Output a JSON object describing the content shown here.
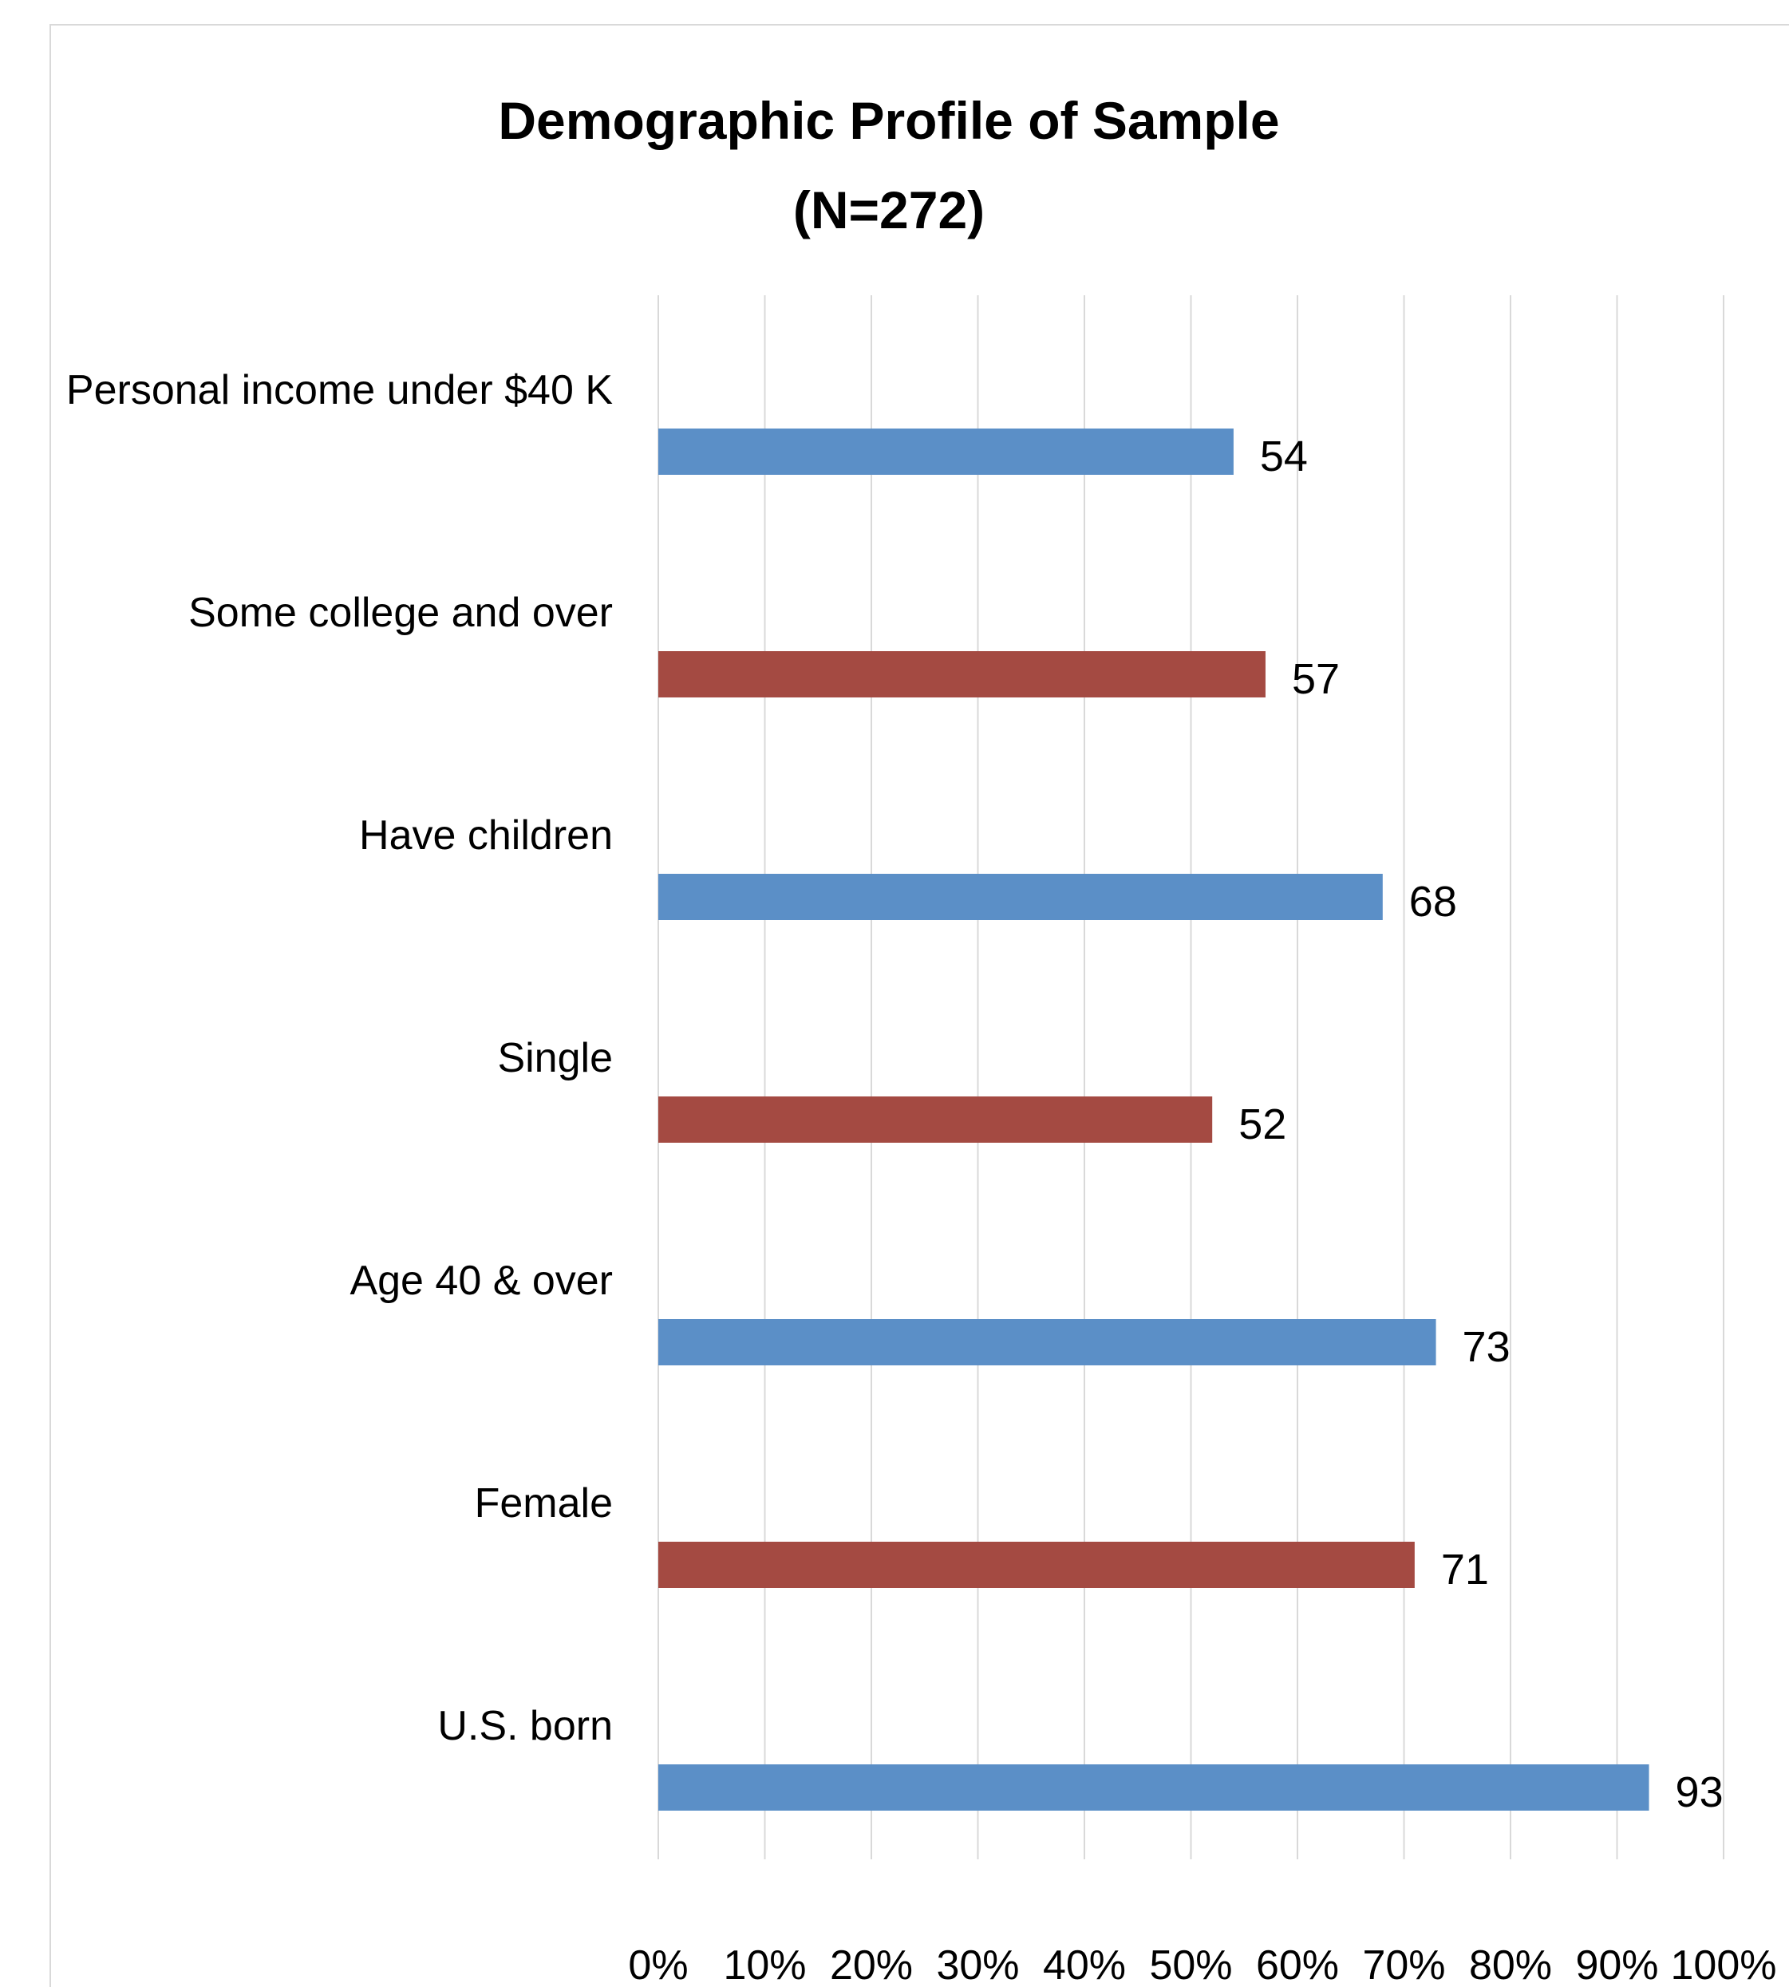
{
  "chart_data": {
    "type": "bar",
    "orientation": "horizontal",
    "title": "Demographic Profile of Sample",
    "subtitle": "(N=272)",
    "xlabel": "",
    "ylabel": "",
    "categories": [
      "Personal income under $40 K",
      "Some college and over",
      "Have children",
      "Single",
      "Age 40 & over",
      "Female",
      "U.S. born"
    ],
    "values": [
      54,
      57,
      68,
      52,
      73,
      71,
      93
    ],
    "value_labels": [
      "54",
      "57",
      "68",
      "52",
      "73",
      "71",
      "93"
    ],
    "bar_colors": [
      "#5B8FC7",
      "#A44A42",
      "#5B8FC7",
      "#A44A42",
      "#5B8FC7",
      "#A44A42",
      "#5B8FC7"
    ],
    "xlim": [
      0,
      100
    ],
    "x_ticks": [
      0,
      10,
      20,
      30,
      40,
      50,
      60,
      70,
      80,
      90,
      100
    ],
    "x_tick_labels": [
      "0%",
      "10%",
      "20%",
      "30%",
      "40%",
      "50%",
      "60%",
      "70%",
      "80%",
      "90%",
      "100%"
    ],
    "grid": "vertical",
    "legend": "none"
  },
  "colors": {
    "blue": "#5B8FC7",
    "red": "#A44A42",
    "gridline": "#d9d9d9"
  }
}
